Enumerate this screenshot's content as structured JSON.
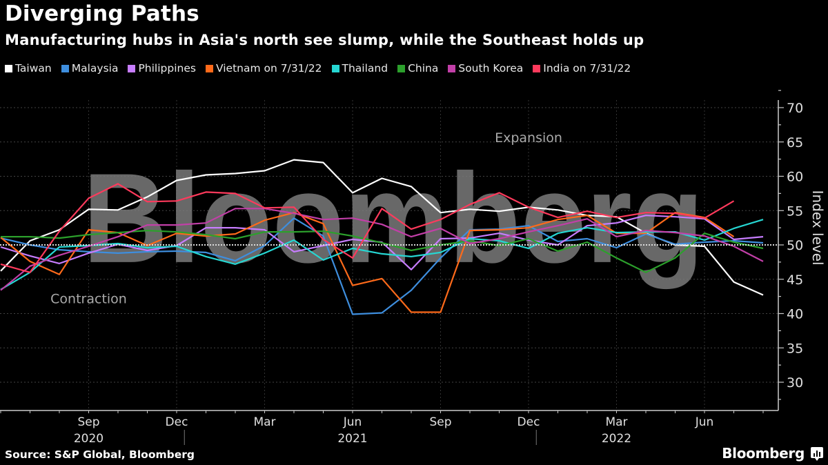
{
  "header": {
    "title": "Diverging Paths",
    "subtitle": "Manufacturing hubs in Asia's north see slump, while the Southeast holds up"
  },
  "footer": {
    "source": "Source: S&P Global, Bloomberg",
    "brand": "Bloomberg",
    "brand_icon": "bloomberg-chart-icon"
  },
  "watermark": "Bloomberg",
  "colors": {
    "background": "#000000",
    "axis": "#cccccc",
    "grid": "#444444",
    "threshold": "#dddddd",
    "watermark": "#7a7a7a"
  },
  "chart_data": {
    "type": "line",
    "title": "Diverging Paths",
    "subtitle": "Manufacturing hubs in Asia's north see slump, while the Southeast holds up",
    "xlabel": "",
    "ylabel": "Index level",
    "ylim": [
      26,
      74
    ],
    "yticks": [
      30,
      35,
      40,
      45,
      50,
      55,
      60,
      65,
      70
    ],
    "grid": true,
    "legend_position": "top",
    "threshold": 50,
    "annotations": [
      {
        "text": "Expansion",
        "x": "2021-12",
        "y": 65
      },
      {
        "text": "Contraction",
        "x": "2020-09",
        "y": 41.5
      }
    ],
    "x": [
      "2020-06",
      "2020-07",
      "2020-08",
      "2020-09",
      "2020-10",
      "2020-11",
      "2020-12",
      "2021-01",
      "2021-02",
      "2021-03",
      "2021-04",
      "2021-05",
      "2021-06",
      "2021-07",
      "2021-08",
      "2021-09",
      "2021-10",
      "2021-11",
      "2021-12",
      "2022-01",
      "2022-02",
      "2022-03",
      "2022-04",
      "2022-05",
      "2022-06",
      "2022-07",
      "2022-08"
    ],
    "x_tick_labels": [
      {
        "month": "Sep",
        "year": "2020",
        "index": 3
      },
      {
        "month": "Dec",
        "year": "",
        "index": 6
      },
      {
        "month": "Mar",
        "year": "",
        "index": 9
      },
      {
        "month": "Jun",
        "year": "2021",
        "index": 12
      },
      {
        "month": "Sep",
        "year": "",
        "index": 15
      },
      {
        "month": "Dec",
        "year": "",
        "index": 18
      },
      {
        "month": "Mar",
        "year": "2022",
        "index": 21
      },
      {
        "month": "Jun",
        "year": "",
        "index": 24
      }
    ],
    "year_dividers": [
      6.5,
      18.5
    ],
    "series": [
      {
        "name": "Taiwan",
        "color": "#ffffff",
        "values": [
          46.2,
          50.6,
          52.2,
          55.2,
          55.1,
          57.0,
          59.4,
          60.2,
          60.4,
          60.8,
          62.4,
          62.0,
          57.6,
          59.7,
          58.5,
          54.7,
          55.2,
          54.9,
          55.5,
          55.1,
          54.3,
          54.1,
          51.7,
          50.0,
          49.8,
          44.6,
          42.7
        ]
      },
      {
        "name": "Malaysia",
        "color": "#3e8ede",
        "values": [
          51.0,
          50.0,
          49.3,
          49.0,
          48.8,
          49.0,
          49.1,
          48.9,
          47.7,
          49.9,
          53.9,
          51.3,
          39.9,
          40.1,
          43.4,
          48.1,
          52.2,
          52.3,
          52.8,
          50.5,
          50.9,
          49.6,
          51.6,
          50.1,
          50.4,
          50.6,
          50.3
        ]
      },
      {
        "name": "Philippines",
        "color": "#c77dff",
        "values": [
          49.7,
          48.4,
          47.3,
          48.8,
          50.1,
          49.2,
          49.9,
          52.5,
          52.5,
          52.2,
          49.0,
          49.9,
          50.8,
          50.4,
          46.4,
          50.9,
          51.0,
          51.7,
          50.7,
          50.0,
          52.8,
          53.2,
          54.3,
          54.1,
          53.8,
          50.8,
          51.2
        ]
      },
      {
        "name": "Vietnam on 7/31/22",
        "color": "#ff6a1a",
        "values": [
          51.1,
          47.6,
          45.7,
          52.2,
          51.8,
          49.9,
          51.7,
          51.3,
          51.6,
          53.6,
          54.7,
          53.1,
          44.1,
          45.1,
          40.2,
          40.2,
          52.1,
          52.2,
          52.5,
          53.7,
          54.3,
          51.7,
          51.7,
          54.7,
          54.0,
          51.2
        ]
      },
      {
        "name": "Thailand",
        "color": "#26d7d3",
        "values": [
          43.5,
          46.0,
          49.7,
          49.9,
          50.2,
          49.6,
          49.8,
          48.3,
          47.2,
          48.8,
          50.7,
          47.8,
          49.5,
          48.7,
          48.3,
          48.9,
          50.9,
          50.6,
          49.5,
          51.7,
          52.5,
          51.8,
          51.9,
          51.9,
          50.7,
          52.4,
          53.7
        ]
      },
      {
        "name": "China",
        "color": "#2ca02c",
        "values": [
          51.2,
          51.2,
          51.0,
          51.5,
          51.8,
          52.1,
          51.9,
          51.5,
          50.9,
          51.9,
          51.9,
          52.0,
          51.3,
          50.3,
          49.2,
          50.0,
          50.6,
          49.9,
          50.9,
          49.1,
          50.4,
          48.1,
          46.0,
          48.1,
          51.7,
          50.4,
          49.5
        ]
      },
      {
        "name": "South Korea",
        "color": "#c23fa8",
        "values": [
          43.4,
          46.9,
          48.5,
          49.8,
          51.2,
          52.9,
          52.9,
          53.2,
          55.3,
          55.3,
          54.6,
          53.7,
          53.9,
          53.0,
          51.2,
          52.4,
          50.2,
          50.9,
          51.9,
          52.8,
          53.8,
          51.2,
          52.1,
          51.8,
          51.3,
          49.8,
          47.6
        ]
      },
      {
        "name": "India on 7/31/22",
        "color": "#ff3a5c",
        "values": [
          47.2,
          46.0,
          52.0,
          56.8,
          58.9,
          56.3,
          56.4,
          57.7,
          57.5,
          55.4,
          55.5,
          50.8,
          48.1,
          55.3,
          52.3,
          53.7,
          55.9,
          57.6,
          55.5,
          54.0,
          54.9,
          54.0,
          54.7,
          54.6,
          53.9,
          56.4
        ]
      }
    ]
  }
}
